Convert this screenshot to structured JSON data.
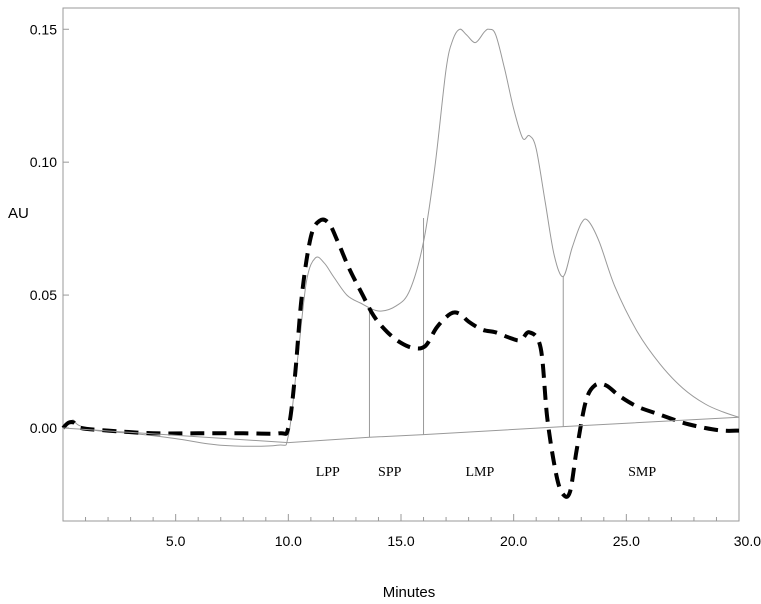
{
  "chart_data": {
    "type": "line",
    "title": "",
    "xlabel": "Minutes",
    "ylabel": "AU",
    "xlim": [
      0,
      30
    ],
    "ylim": [
      -0.035,
      0.158
    ],
    "x_tick_labels": [
      "5.0",
      "10.0",
      "15.0",
      "20.0",
      "25.0",
      "30.0"
    ],
    "y_tick_labels": [
      "0.00",
      "0.05",
      "0.10",
      "0.15"
    ],
    "grid": false,
    "legend": "none",
    "series": [
      {
        "style": "solid-thin-gray",
        "color": "#999999",
        "points": [
          [
            0.0,
            0.0
          ],
          [
            0.3,
            0.002
          ],
          [
            0.45,
            0.003
          ],
          [
            0.7,
            0.001
          ],
          [
            1.5,
            -0.001
          ],
          [
            3.0,
            -0.002
          ],
          [
            5.0,
            -0.004
          ],
          [
            7.0,
            -0.0065
          ],
          [
            9.5,
            -0.0065
          ],
          [
            10.0,
            -0.003
          ],
          [
            10.4,
            0.025
          ],
          [
            10.8,
            0.055
          ],
          [
            11.2,
            0.064
          ],
          [
            11.6,
            0.062
          ],
          [
            12.0,
            0.057
          ],
          [
            12.6,
            0.05
          ],
          [
            13.2,
            0.047
          ],
          [
            14.0,
            0.044
          ],
          [
            14.8,
            0.046
          ],
          [
            15.4,
            0.052
          ],
          [
            16.0,
            0.07
          ],
          [
            16.5,
            0.098
          ],
          [
            17.0,
            0.135
          ],
          [
            17.3,
            0.146
          ],
          [
            17.6,
            0.15
          ],
          [
            17.9,
            0.148
          ],
          [
            18.3,
            0.145
          ],
          [
            18.7,
            0.149
          ],
          [
            18.9,
            0.15
          ],
          [
            19.2,
            0.148
          ],
          [
            19.6,
            0.135
          ],
          [
            20.0,
            0.12
          ],
          [
            20.4,
            0.109
          ],
          [
            20.7,
            0.11
          ],
          [
            21.0,
            0.105
          ],
          [
            21.4,
            0.085
          ],
          [
            21.8,
            0.065
          ],
          [
            22.2,
            0.057
          ],
          [
            22.6,
            0.068
          ],
          [
            23.0,
            0.077
          ],
          [
            23.3,
            0.078
          ],
          [
            23.8,
            0.07
          ],
          [
            24.5,
            0.053
          ],
          [
            25.5,
            0.036
          ],
          [
            26.5,
            0.024
          ],
          [
            27.5,
            0.015
          ],
          [
            28.5,
            0.009
          ],
          [
            29.3,
            0.006
          ],
          [
            30.0,
            0.004
          ]
        ]
      },
      {
        "style": "dashed-thick-black",
        "color": "#000000",
        "points": [
          [
            0.0,
            0.0
          ],
          [
            0.25,
            0.002
          ],
          [
            0.5,
            0.002
          ],
          [
            0.8,
            0.0
          ],
          [
            2.0,
            -0.001
          ],
          [
            4.0,
            -0.002
          ],
          [
            6.0,
            -0.002
          ],
          [
            8.0,
            -0.002
          ],
          [
            9.6,
            -0.002
          ],
          [
            10.0,
            0.0
          ],
          [
            10.3,
            0.02
          ],
          [
            10.6,
            0.05
          ],
          [
            11.0,
            0.072
          ],
          [
            11.4,
            0.078
          ],
          [
            11.8,
            0.077
          ],
          [
            12.2,
            0.07
          ],
          [
            12.7,
            0.06
          ],
          [
            13.3,
            0.05
          ],
          [
            13.8,
            0.042
          ],
          [
            14.4,
            0.036
          ],
          [
            15.0,
            0.032
          ],
          [
            15.6,
            0.03
          ],
          [
            16.1,
            0.031
          ],
          [
            16.6,
            0.038
          ],
          [
            17.2,
            0.043
          ],
          [
            17.6,
            0.043
          ],
          [
            18.0,
            0.04
          ],
          [
            18.6,
            0.037
          ],
          [
            19.2,
            0.036
          ],
          [
            19.8,
            0.034
          ],
          [
            20.3,
            0.033
          ],
          [
            20.7,
            0.036
          ],
          [
            21.2,
            0.03
          ],
          [
            21.5,
            0.003
          ],
          [
            21.9,
            -0.018
          ],
          [
            22.2,
            -0.025
          ],
          [
            22.5,
            -0.024
          ],
          [
            22.8,
            -0.008
          ],
          [
            23.2,
            0.01
          ],
          [
            23.6,
            0.016
          ],
          [
            24.1,
            0.016
          ],
          [
            24.7,
            0.012
          ],
          [
            25.5,
            0.008
          ],
          [
            26.5,
            0.005
          ],
          [
            27.5,
            0.002
          ],
          [
            28.5,
            0.0
          ],
          [
            29.3,
            -0.001
          ],
          [
            30.0,
            -0.001
          ]
        ]
      },
      {
        "style": "baseline-thin-gray",
        "color": "#999999",
        "points": [
          [
            0.0,
            0.0
          ],
          [
            10.0,
            -0.0055
          ],
          [
            13.6,
            -0.0035
          ],
          [
            16.0,
            -0.0025
          ],
          [
            22.2,
            0.0005
          ],
          [
            30.0,
            0.004
          ]
        ]
      }
    ],
    "drop_lines": [
      {
        "x": 13.6,
        "y_top": 0.045
      },
      {
        "x": 16.0,
        "y_top": 0.079
      },
      {
        "x": 22.2,
        "y_top": 0.057
      }
    ],
    "annotations": [
      {
        "text": "LPP",
        "x": 11.75,
        "y": -0.018
      },
      {
        "text": "SPP",
        "x": 14.5,
        "y": -0.018
      },
      {
        "text": "LMP",
        "x": 18.5,
        "y": -0.018
      },
      {
        "text": "SMP",
        "x": 25.7,
        "y": -0.018
      }
    ]
  }
}
